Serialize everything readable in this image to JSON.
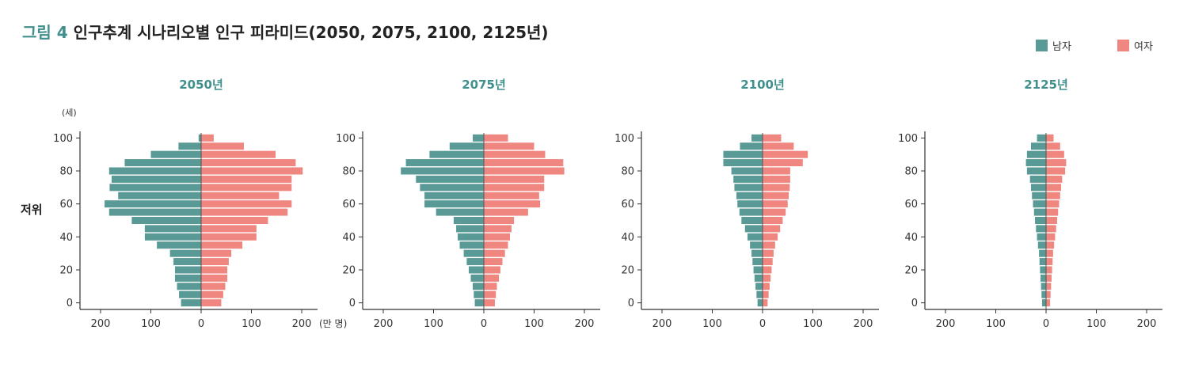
{
  "title": {
    "figure": "그림 4",
    "text": "인구추계 시나리오별 인구 피라미드(2050, 2075, 2100, 2125년)"
  },
  "legend": {
    "male": "남자",
    "female": "여자"
  },
  "scenario_label": "저위",
  "y_unit": "(세)",
  "x_unit": "(만 명)",
  "colors": {
    "male": "#5a9a96",
    "female": "#ef8780",
    "panel_title": "#3f8f8c"
  },
  "chart_data": {
    "type": "bar",
    "orientation": "horizontal-pyramid",
    "ylabel": "(세)",
    "xlabel": "(만 명)",
    "ylim": [
      -4,
      104
    ],
    "xlim": [
      -200,
      200
    ],
    "y_ticks": [
      0,
      20,
      40,
      60,
      80,
      100
    ],
    "x_ticks": [
      200,
      100,
      0,
      100,
      200
    ],
    "grid": false,
    "legend_position": "top-right",
    "age_groups": [
      "0-4",
      "5-9",
      "10-14",
      "15-19",
      "20-24",
      "25-29",
      "30-34",
      "35-39",
      "40-44",
      "45-49",
      "50-54",
      "55-59",
      "60-64",
      "65-69",
      "70-74",
      "75-79",
      "80-84",
      "85-89",
      "90-94",
      "95-99",
      "100+"
    ],
    "panels": [
      {
        "year": "2050년",
        "male": [
          40,
          44,
          48,
          52,
          52,
          55,
          62,
          88,
          112,
          112,
          138,
          183,
          192,
          165,
          182,
          178,
          183,
          152,
          100,
          45,
          5
        ],
        "female": [
          40,
          44,
          48,
          52,
          52,
          55,
          60,
          82,
          110,
          110,
          133,
          172,
          180,
          155,
          180,
          180,
          202,
          188,
          148,
          85,
          25
        ]
      },
      {
        "year": "2075년",
        "male": [
          18,
          20,
          22,
          26,
          30,
          34,
          40,
          48,
          52,
          55,
          60,
          95,
          118,
          118,
          127,
          135,
          165,
          155,
          108,
          68,
          22
        ],
        "female": [
          22,
          24,
          26,
          30,
          33,
          37,
          42,
          48,
          52,
          55,
          60,
          88,
          112,
          110,
          120,
          120,
          160,
          158,
          122,
          100,
          48
        ]
      },
      {
        "year": "2100년",
        "male": [
          10,
          12,
          14,
          16,
          18,
          20,
          22,
          25,
          30,
          35,
          42,
          46,
          50,
          52,
          56,
          58,
          62,
          78,
          78,
          45,
          22
        ],
        "female": [
          10,
          12,
          14,
          16,
          18,
          20,
          22,
          25,
          30,
          35,
          40,
          46,
          50,
          52,
          54,
          55,
          55,
          80,
          90,
          62,
          37
        ]
      },
      {
        "year": "2125년",
        "male": [
          8,
          9,
          10,
          11,
          12,
          13,
          14,
          16,
          18,
          20,
          22,
          24,
          26,
          28,
          30,
          32,
          38,
          40,
          38,
          30,
          18
        ],
        "female": [
          8,
          9,
          10,
          11,
          12,
          13,
          14,
          16,
          18,
          20,
          22,
          24,
          26,
          28,
          30,
          32,
          38,
          40,
          36,
          28,
          15
        ]
      }
    ]
  }
}
